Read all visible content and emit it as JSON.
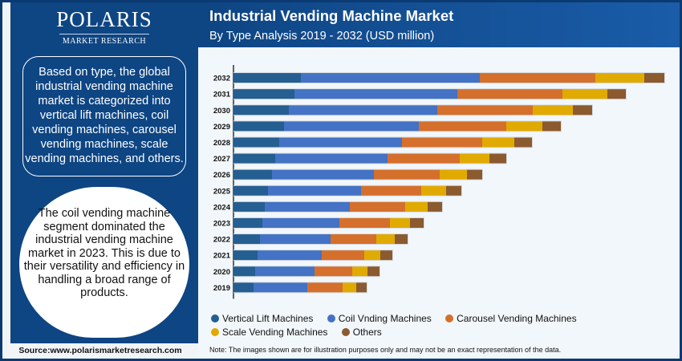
{
  "logo": {
    "name": "POLARIS",
    "tagline": "MARKET RESEARCH"
  },
  "header": {
    "title": "Industrial Vending Machine Market",
    "subtitle": "By Type Analysis 2019 - 2032 (USD million)"
  },
  "left_panel": {
    "box_text": "Based on type, the global industrial vending machine market is categorized into vertical lift machines, coil vending machines, carousel vending machines, scale vending machines, and others.",
    "circle_text": "The coil vending machine segment dominated the industrial vending machine market in 2023. This is due to their versatility and efficiency in handling a broad range of products.",
    "source": "Source:www.polarismarketresearch.com"
  },
  "note": "Note: The images shown are for illustration purposes only and may not be an exact representation of the data.",
  "colors": {
    "vertical_lift": "#255e91",
    "coil": "#4472c4",
    "carousel": "#d46f2c",
    "scale": "#e1aa00",
    "others": "#8b5a2f"
  },
  "chart_data": {
    "type": "bar",
    "orientation": "horizontal",
    "stacked": true,
    "title": "Industrial Vending Machine Market",
    "subtitle": "By Type Analysis 2019 - 2032 (USD million)",
    "xlabel": "",
    "ylabel": "",
    "grid": false,
    "legend_position": "bottom",
    "categories": [
      "2032",
      "2031",
      "2030",
      "2029",
      "2028",
      "2027",
      "2026",
      "2025",
      "2024",
      "2023",
      "2022",
      "2021",
      "2020",
      "2019"
    ],
    "xlim": [
      0,
      560
    ],
    "series": [
      {
        "name": "Vertical Lift Machines",
        "color": "#255e91",
        "values": [
          84,
          76,
          69,
          63,
          57,
          52,
          48,
          43,
          39,
          36,
          33,
          30,
          27,
          25
        ]
      },
      {
        "name": "Coil Vnding Machines",
        "color": "#4472c4",
        "values": [
          223,
          203,
          185,
          168,
          153,
          140,
          127,
          116,
          106,
          96,
          88,
          80,
          74,
          67
        ]
      },
      {
        "name": "Carousel Vending Machines",
        "color": "#d46f2c",
        "values": [
          144,
          131,
          119,
          109,
          100,
          90,
          82,
          75,
          69,
          63,
          57,
          53,
          47,
          44
        ]
      },
      {
        "name": "Scale Vending Machines",
        "color": "#e1aa00",
        "values": [
          61,
          56,
          50,
          45,
          40,
          37,
          34,
          31,
          28,
          25,
          23,
          20,
          19,
          17
        ]
      },
      {
        "name": "Others",
        "color": "#8b5a2f",
        "values": [
          25,
          23,
          24,
          23,
          22,
          21,
          19,
          19,
          18,
          17,
          16,
          15,
          15,
          13
        ]
      }
    ]
  }
}
